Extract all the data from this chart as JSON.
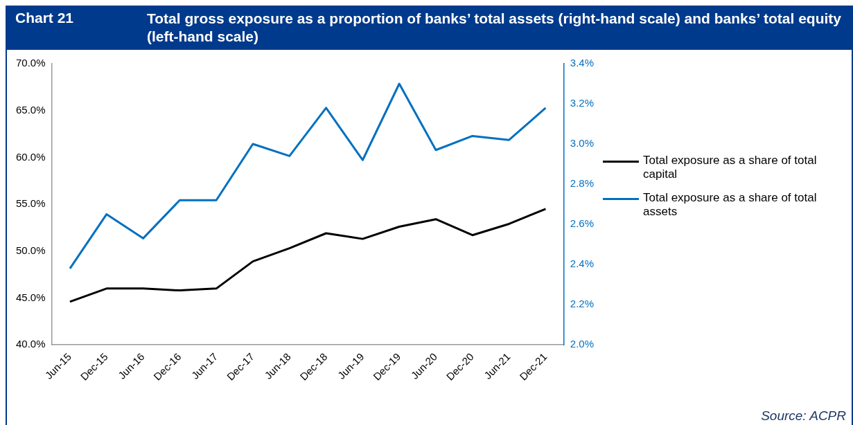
{
  "chart_data": {
    "type": "line",
    "title": "Total gross exposure as a proportion of banks’ total assets (right-hand scale) and banks’ total equity (left-hand scale)",
    "annotations": [
      "Chart 21",
      "Source: ACPR"
    ],
    "categories": [
      "Jun-15",
      "Dec-15",
      "Jun-16",
      "Dec-16",
      "Jun-17",
      "Dec-17",
      "Jun-18",
      "Dec-18",
      "Jun-19",
      "Dec-19",
      "Jun-20",
      "Dec-20",
      "Jun-21",
      "Dec-21"
    ],
    "series": [
      {
        "name": "Total exposure as a share of total capital",
        "color": "#000000",
        "values": [
          44.6,
          46.0,
          46.0,
          45.8,
          46.0,
          48.9,
          50.3,
          51.9,
          51.3,
          52.6,
          53.4,
          51.7,
          52.9,
          54.5
        ]
      },
      {
        "name": "Total exposure as a share of total assets",
        "color": "#0070c0",
        "axis": "y2",
        "values": [
          2.38,
          2.65,
          2.53,
          2.72,
          2.72,
          3.0,
          2.94,
          3.18,
          2.92,
          3.3,
          2.97,
          3.04,
          3.02,
          3.18
        ]
      }
    ],
    "ylim": [
      40,
      70
    ],
    "yticks": [
      {
        "value": 40,
        "label": "40.0%"
      },
      {
        "value": 45,
        "label": "45.0%"
      },
      {
        "value": 50,
        "label": "50.0%"
      },
      {
        "value": 55,
        "label": "55.0%"
      },
      {
        "value": 60,
        "label": "60.0%"
      },
      {
        "value": 65,
        "label": "65.0%"
      },
      {
        "value": 70,
        "label": "70.0%"
      }
    ],
    "y2lim": [
      2.0,
      3.4
    ],
    "y2ticks": [
      {
        "value": 2.0,
        "label": "2.0%"
      },
      {
        "value": 2.2,
        "label": "2.2%"
      },
      {
        "value": 2.4,
        "label": "2.4%"
      },
      {
        "value": 2.6,
        "label": "2.6%"
      },
      {
        "value": 2.8,
        "label": "2.8%"
      },
      {
        "value": 3.0,
        "label": "3.0%"
      },
      {
        "value": 3.2,
        "label": "3.2%"
      },
      {
        "value": 3.4,
        "label": "3.4%"
      }
    ],
    "grid": false,
    "legend": "right",
    "marker": "none",
    "line_style": "solid"
  }
}
